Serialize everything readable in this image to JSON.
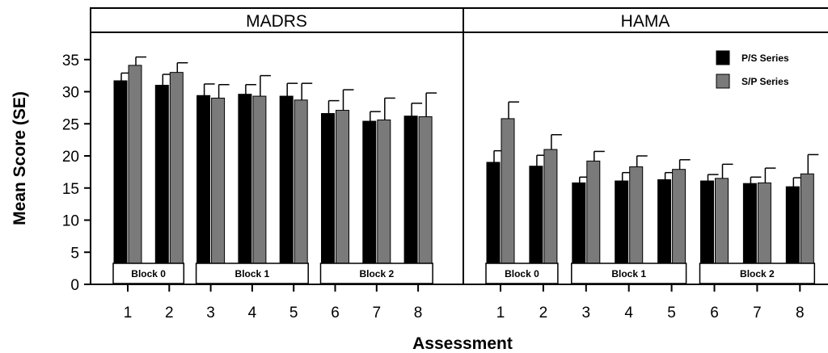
{
  "chart_data": {
    "type": "bar",
    "ylabel": "Mean Score (SE)",
    "xlabel": "Assessment",
    "ylim": [
      0,
      38
    ],
    "yticks": [
      0,
      5,
      10,
      15,
      20,
      25,
      30,
      35
    ],
    "categories": [
      "1",
      "2",
      "3",
      "4",
      "5",
      "6",
      "7",
      "8"
    ],
    "legend": {
      "placement": "top-right of HAMA panel",
      "entries": [
        {
          "label": "P/S Series",
          "color": "#000000"
        },
        {
          "label": "S/P Series",
          "color": "#7a7a7a"
        }
      ]
    },
    "panels": [
      {
        "title": "MADRS",
        "series": [
          {
            "name": "P/S Series",
            "color": "#000000",
            "values": [
              31.7,
              31.0,
              29.4,
              29.6,
              29.3,
              26.6,
              25.4,
              26.2
            ],
            "se": [
              1.2,
              1.7,
              1.8,
              1.5,
              2.0,
              2.0,
              1.5,
              2.0
            ]
          },
          {
            "name": "S/P Series",
            "color": "#7a7a7a",
            "values": [
              34.1,
              33.0,
              29.0,
              29.3,
              28.7,
              27.1,
              25.6,
              26.1
            ],
            "se": [
              1.3,
              1.5,
              2.1,
              3.2,
              2.6,
              3.2,
              3.4,
              3.7
            ]
          }
        ],
        "blocks": [
          {
            "label": "Block 0",
            "from": 1,
            "to": 2
          },
          {
            "label": "Block 1",
            "from": 3,
            "to": 5
          },
          {
            "label": "Block 2",
            "from": 6,
            "to": 8
          }
        ]
      },
      {
        "title": "HAMA",
        "series": [
          {
            "name": "P/S Series",
            "color": "#000000",
            "values": [
              19.0,
              18.4,
              15.8,
              16.1,
              16.3,
              16.1,
              15.7,
              15.2
            ],
            "se": [
              1.8,
              1.7,
              0.9,
              1.3,
              1.1,
              1.0,
              1.0,
              1.4
            ]
          },
          {
            "name": "S/P Series",
            "color": "#7a7a7a",
            "values": [
              25.8,
              21.0,
              19.2,
              18.3,
              17.9,
              16.5,
              15.8,
              17.2
            ],
            "se": [
              2.6,
              2.3,
              1.5,
              1.7,
              1.5,
              2.2,
              2.3,
              3.0
            ]
          }
        ],
        "blocks": [
          {
            "label": "Block 0",
            "from": 1,
            "to": 2
          },
          {
            "label": "Block 1",
            "from": 3,
            "to": 5
          },
          {
            "label": "Block 2",
            "from": 6,
            "to": 8
          }
        ]
      }
    ]
  }
}
